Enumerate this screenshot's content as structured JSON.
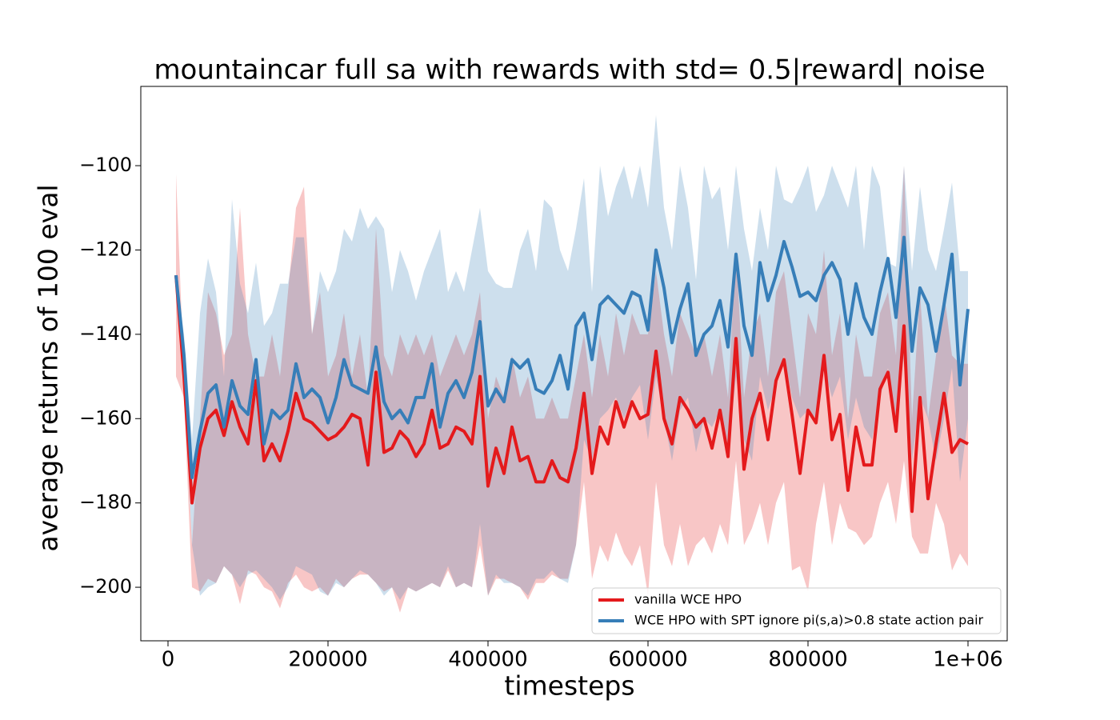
{
  "chart_data": {
    "type": "line",
    "title": "mountaincar full sa with rewards with std= 0.5|reward| noise",
    "x_label": "timesteps",
    "y_label": "average returns of 100 eval",
    "xlim": [
      -34000,
      1049000
    ],
    "ylim": [
      -212.7,
      -81.2
    ],
    "xticks": [
      0,
      200000,
      400000,
      600000,
      800000,
      {
        "value": 1000000,
        "label": "1e+06"
      }
    ],
    "yticks": [
      {
        "value": -200,
        "label": "−200"
      },
      {
        "value": -180,
        "label": "−180"
      },
      {
        "value": -160,
        "label": "−160"
      },
      {
        "value": -140,
        "label": "−140"
      },
      {
        "value": -120,
        "label": "−120"
      },
      {
        "value": -100,
        "label": "−100"
      }
    ],
    "legend": "lower right",
    "x": [
      10000,
      20000,
      30000,
      40000,
      50000,
      60000,
      70000,
      80000,
      90000,
      100000,
      110000,
      120000,
      130000,
      140000,
      150000,
      160000,
      170000,
      180000,
      190000,
      200000,
      210000,
      220000,
      230000,
      240000,
      250000,
      260000,
      270000,
      280000,
      290000,
      300000,
      310000,
      320000,
      330000,
      340000,
      350000,
      360000,
      370000,
      380000,
      390000,
      400000,
      410000,
      420000,
      430000,
      440000,
      450000,
      460000,
      470000,
      480000,
      490000,
      500000,
      510000,
      520000,
      530000,
      540000,
      550000,
      560000,
      570000,
      580000,
      590000,
      600000,
      610000,
      620000,
      630000,
      640000,
      650000,
      660000,
      670000,
      680000,
      690000,
      700000,
      710000,
      720000,
      730000,
      740000,
      750000,
      760000,
      770000,
      780000,
      790000,
      800000,
      810000,
      820000,
      830000,
      840000,
      850000,
      860000,
      870000,
      880000,
      890000,
      900000,
      910000,
      920000,
      930000,
      940000,
      950000,
      960000,
      970000,
      980000,
      990000,
      1000000
    ],
    "series": [
      {
        "name": "vanilla WCE HPO",
        "color": "#e41a1c",
        "values": [
          -126,
          -150,
          -180,
          -167,
          -160,
          -158,
          -164,
          -156,
          -162,
          -166,
          -151,
          -170,
          -166,
          -170,
          -163,
          -154,
          -160,
          -161,
          -163,
          -165,
          -164,
          -162,
          -159,
          -160,
          -171,
          -149,
          -168,
          -167,
          -163,
          -165,
          -169,
          -166,
          -158,
          -167,
          -166,
          -162,
          -163,
          -166,
          -150,
          -176,
          -167,
          -173,
          -162,
          -170,
          -169,
          -175,
          -175,
          -170,
          -174,
          -175,
          -167,
          -154,
          -173,
          -162,
          -166,
          -156,
          -162,
          -156,
          -160,
          -159,
          -144,
          -160,
          -166,
          -155,
          -158,
          -162,
          -160,
          -167,
          -158,
          -169,
          -141,
          -172,
          -160,
          -154,
          -165,
          -151,
          -146,
          -159,
          -173,
          -158,
          -161,
          -145,
          -165,
          -159,
          -177,
          -162,
          -171,
          -171,
          -153,
          -149,
          -163,
          -138,
          -182,
          -155,
          -179,
          -166,
          -154,
          -168,
          -165,
          -166
        ],
        "upper": [
          -102,
          -150,
          -190,
          -160,
          -130,
          -135,
          -145,
          -140,
          -110,
          -140,
          -150,
          -150,
          -140,
          -150,
          -130,
          -110,
          -105,
          -140,
          -130,
          -150,
          -145,
          -135,
          -150,
          -140,
          -155,
          -115,
          -145,
          -150,
          -140,
          -145,
          -140,
          -145,
          -140,
          -150,
          -145,
          -140,
          -145,
          -140,
          -130,
          -160,
          -150,
          -155,
          -145,
          -155,
          -150,
          -160,
          -160,
          -155,
          -160,
          -160,
          -150,
          -140,
          -155,
          -140,
          -150,
          -135,
          -145,
          -135,
          -140,
          -140,
          -125,
          -140,
          -150,
          -135,
          -140,
          -145,
          -140,
          -150,
          -140,
          -155,
          -120,
          -155,
          -140,
          -135,
          -150,
          -130,
          -125,
          -140,
          -155,
          -135,
          -140,
          -120,
          -145,
          -135,
          -160,
          -140,
          -150,
          -150,
          -135,
          -130,
          -145,
          -100,
          -160,
          -130,
          -160,
          -145,
          -130,
          -145,
          -147,
          -147
        ],
        "lower": [
          -150,
          -155,
          -200,
          -201,
          -198,
          -199,
          -195,
          -197,
          -204,
          -196,
          -197,
          -200,
          -201,
          -205,
          -199,
          -197,
          -200,
          -201,
          -200,
          -202,
          -198,
          -200,
          -198,
          -197,
          -197,
          -199,
          -201,
          -200,
          -206,
          -200,
          -201,
          -200,
          -199,
          -200,
          -196,
          -200,
          -199,
          -200,
          -190,
          -202,
          -198,
          -198,
          -199,
          -200,
          -203,
          -199,
          -199,
          -197,
          -198,
          -198,
          -190,
          -175,
          -198,
          -190,
          -194,
          -187,
          -192,
          -195,
          -190,
          -202,
          -175,
          -190,
          -195,
          -185,
          -195,
          -190,
          -188,
          -192,
          -185,
          -190,
          -170,
          -190,
          -186,
          -180,
          -190,
          -180,
          -175,
          -196,
          -195,
          -201,
          -185,
          -175,
          -190,
          -180,
          -186,
          -187,
          -190,
          -188,
          -180,
          -175,
          -185,
          -170,
          -188,
          -192,
          -192,
          -180,
          -185,
          -196,
          -192,
          -195
        ]
      },
      {
        "name": "WCE HPO with SPT ignore pi(s,a)>0.8 state action pair",
        "color": "#377eb8",
        "values": [
          -126,
          -145,
          -174,
          -163,
          -154,
          -152,
          -162,
          -151,
          -157,
          -159,
          -146,
          -166,
          -158,
          -160,
          -158,
          -147,
          -155,
          -153,
          -155,
          -161,
          -155,
          -146,
          -152,
          -153,
          -154,
          -143,
          -156,
          -160,
          -158,
          -161,
          -155,
          -155,
          -147,
          -162,
          -154,
          -151,
          -155,
          -149,
          -137,
          -157,
          -153,
          -156,
          -146,
          -148,
          -146,
          -153,
          -154,
          -151,
          -145,
          -153,
          -138,
          -135,
          -146,
          -133,
          -131,
          -133,
          -135,
          -130,
          -131,
          -139,
          -120,
          -129,
          -142,
          -134,
          -128,
          -145,
          -140,
          -138,
          -132,
          -143,
          -121,
          -138,
          -145,
          -123,
          -132,
          -126,
          -118,
          -124,
          -131,
          -130,
          -132,
          -126,
          -123,
          -127,
          -140,
          -128,
          -136,
          -140,
          -130,
          -122,
          -136,
          -117,
          -144,
          -129,
          -133,
          -144,
          -133,
          -121,
          -152,
          -134
        ],
        "upper": [
          -126,
          -140,
          -165,
          -135,
          -122,
          -130,
          -150,
          -108,
          -128,
          -135,
          -123,
          -138,
          -135,
          -128,
          -128,
          -117,
          -117,
          -140,
          -125,
          -130,
          -125,
          -115,
          -118,
          -110,
          -115,
          -112,
          -115,
          -130,
          -120,
          -125,
          -132,
          -125,
          -120,
          -115,
          -130,
          -125,
          -130,
          -120,
          -110,
          -125,
          -128,
          -129,
          -129,
          -120,
          -115,
          -125,
          -108,
          -110,
          -120,
          -125,
          -115,
          -103,
          -130,
          -100,
          -112,
          -105,
          -100,
          -108,
          -100,
          -110,
          -88,
          -110,
          -120,
          -100,
          -110,
          -127,
          -100,
          -108,
          -105,
          -120,
          -100,
          -115,
          -125,
          -110,
          -120,
          -100,
          -108,
          -109,
          -105,
          -100,
          -111,
          -107,
          -100,
          -105,
          -110,
          -100,
          -120,
          -100,
          -105,
          -123,
          -124,
          -100,
          -125,
          -105,
          -120,
          -125,
          -115,
          -104,
          -125,
          -125
        ],
        "lower": [
          -126,
          -150,
          -190,
          -202,
          -200,
          -199,
          -195,
          -197,
          -200,
          -197,
          -196,
          -198,
          -200,
          -203,
          -200,
          -195,
          -196,
          -197,
          -201,
          -202,
          -199,
          -200,
          -198,
          -196,
          -197,
          -199,
          -202,
          -200,
          -203,
          -200,
          -201,
          -200,
          -199,
          -200,
          -195,
          -200,
          -199,
          -200,
          -185,
          -202,
          -197,
          -199,
          -199,
          -200,
          -202,
          -198,
          -198,
          -196,
          -198,
          -199,
          -190,
          -165,
          -170,
          -160,
          -158,
          -155,
          -160,
          -155,
          -152,
          -165,
          -150,
          -160,
          -170,
          -158,
          -155,
          -168,
          -160,
          -162,
          -158,
          -168,
          -150,
          -165,
          -170,
          -150,
          -158,
          -152,
          -145,
          -155,
          -160,
          -158,
          -160,
          -148,
          -155,
          -150,
          -165,
          -155,
          -162,
          -165,
          -155,
          -148,
          -160,
          -145,
          -170,
          -155,
          -160,
          -170,
          -160,
          -148,
          -175,
          -160
        ]
      }
    ]
  }
}
